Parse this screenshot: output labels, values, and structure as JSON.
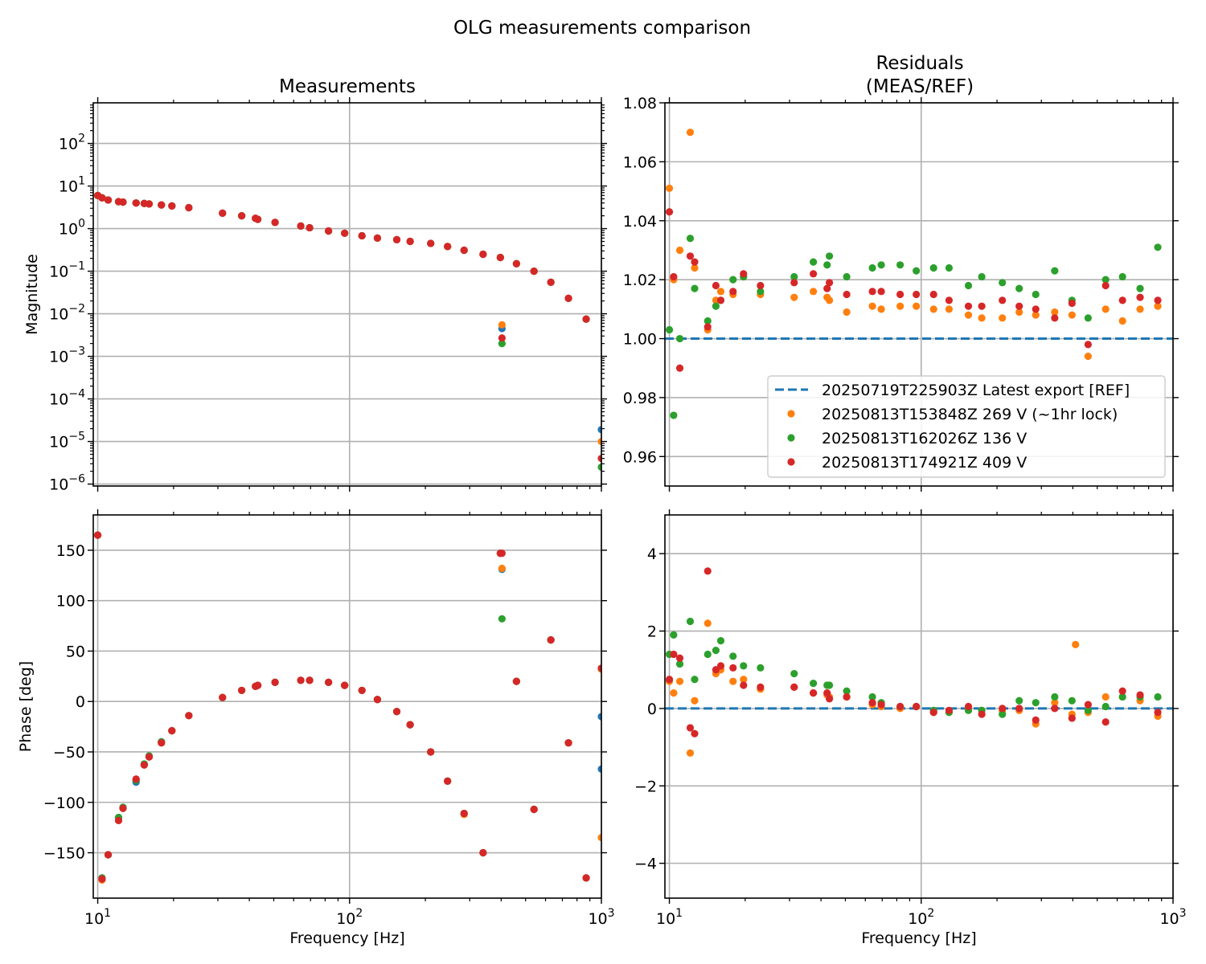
{
  "figure": {
    "title": "OLG measurements comparison"
  },
  "colors": {
    "ref": "#1f77b4",
    "meas1": "#ff7f0e",
    "meas2": "#2ca02c",
    "meas3": "#d62728",
    "grid": "#b0b0b0"
  },
  "chart_data": [
    {
      "id": "mag",
      "type": "scatter",
      "title": "Measurements",
      "xlabel": "",
      "ylabel": "Magnitude",
      "xscale": "log",
      "yscale": "log",
      "xlim": [
        9.6,
        1000
      ],
      "ylim": [
        9e-07,
        900
      ],
      "grid": true,
      "xticks": [
        10,
        100,
        1000
      ],
      "yticks": [
        1e-06,
        1e-05,
        0.0001,
        0.001,
        0.01,
        0.1,
        1,
        10,
        100
      ],
      "ytick_labels": [
        [
          "10",
          "−6"
        ],
        [
          "10",
          "−5"
        ],
        [
          "10",
          "−4"
        ],
        [
          "10",
          "−3"
        ],
        [
          "10",
          "−2"
        ],
        [
          "10",
          "−1"
        ],
        [
          "10",
          "0"
        ],
        [
          "10",
          "1"
        ],
        [
          "10",
          "2"
        ]
      ],
      "x": [
        10.0,
        10.4,
        11.0,
        12.1,
        12.6,
        14.2,
        15.3,
        16.0,
        17.9,
        19.7,
        23.0,
        31.3,
        37.3,
        42.3,
        43.2,
        50.6,
        64.0,
        69.4,
        82.5,
        95.6,
        112.0,
        129.0,
        154.0,
        174.0,
        210.0,
        245.0,
        285.0,
        339.0,
        397.0,
        460.0,
        540.0,
        630.0,
        740.0,
        870.0
      ],
      "series": [
        {
          "name": "20250719T225903Z Latest export [REF]",
          "color_key": "ref",
          "values": [
            6.0,
            5.3,
            4.7,
            4.3,
            4.2,
            4.0,
            3.9,
            3.8,
            3.6,
            3.4,
            3.1,
            2.3,
            2.0,
            1.75,
            1.65,
            1.4,
            1.15,
            1.05,
            0.88,
            0.78,
            0.68,
            0.6,
            0.55,
            0.5,
            0.45,
            0.38,
            0.31,
            0.25,
            0.21,
            0.15,
            0.1,
            0.055,
            0.023,
            0.0075
          ],
          "extra": [
            [
              403,
              0.0045
            ],
            [
              1000,
              1.9e-05
            ]
          ]
        },
        {
          "name": "20250813T153848Z 269 V (~1hr lock)",
          "color_key": "meas1",
          "values": [
            6.0,
            5.3,
            4.7,
            4.3,
            4.2,
            4.0,
            3.9,
            3.8,
            3.6,
            3.4,
            3.1,
            2.3,
            2.0,
            1.75,
            1.65,
            1.4,
            1.15,
            1.05,
            0.88,
            0.78,
            0.68,
            0.6,
            0.55,
            0.5,
            0.45,
            0.38,
            0.31,
            0.25,
            0.21,
            0.15,
            0.1,
            0.055,
            0.023,
            0.0075
          ],
          "extra": [
            [
              403,
              0.0055
            ],
            [
              1000,
              1e-05
            ]
          ]
        },
        {
          "name": "20250813T162026Z 136 V",
          "color_key": "meas2",
          "values": [
            6.0,
            5.3,
            4.7,
            4.3,
            4.2,
            4.0,
            3.9,
            3.8,
            3.6,
            3.4,
            3.1,
            2.3,
            2.0,
            1.75,
            1.65,
            1.4,
            1.15,
            1.05,
            0.88,
            0.78,
            0.68,
            0.6,
            0.55,
            0.5,
            0.45,
            0.38,
            0.31,
            0.25,
            0.21,
            0.15,
            0.1,
            0.055,
            0.023,
            0.0075
          ],
          "extra": [
            [
              403,
              0.002
            ],
            [
              1000,
              2.5e-06
            ]
          ]
        },
        {
          "name": "20250813T174921Z 409 V",
          "color_key": "meas3",
          "values": [
            6.0,
            5.3,
            4.7,
            4.3,
            4.2,
            4.0,
            3.9,
            3.8,
            3.6,
            3.4,
            3.1,
            2.3,
            2.0,
            1.75,
            1.65,
            1.4,
            1.15,
            1.05,
            0.88,
            0.78,
            0.68,
            0.6,
            0.55,
            0.5,
            0.45,
            0.38,
            0.31,
            0.25,
            0.21,
            0.15,
            0.1,
            0.055,
            0.023,
            0.0075
          ],
          "extra": [
            [
              403,
              0.0027
            ],
            [
              1000,
              4e-06
            ]
          ]
        }
      ]
    },
    {
      "id": "mag_res",
      "type": "scatter",
      "title": "Residuals\n(MEAS/REF)",
      "xlabel": "",
      "ylabel": "",
      "xscale": "log",
      "yscale": "linear",
      "xlim": [
        9.6,
        1000
      ],
      "ylim": [
        0.95,
        1.08
      ],
      "grid": true,
      "xticks": [
        10,
        100,
        1000
      ],
      "yticks": [
        0.96,
        0.98,
        1.0,
        1.02,
        1.04,
        1.06,
        1.08
      ],
      "ytick_labels": [
        "0.96",
        "0.98",
        "1.00",
        "1.02",
        "1.04",
        "1.06",
        "1.08"
      ],
      "reference": 1.0,
      "x": [
        10.0,
        10.4,
        11.0,
        12.1,
        12.6,
        14.2,
        15.3,
        16.0,
        17.9,
        19.7,
        23.0,
        31.3,
        37.3,
        42.3,
        43.2,
        50.6,
        64.0,
        69.4,
        82.5,
        95.6,
        112.0,
        129.0,
        154.0,
        174.0,
        210.0,
        245.0,
        285.0,
        339.0,
        397.0,
        460.0,
        540.0,
        630.0,
        740.0,
        870.0
      ],
      "series": [
        {
          "name": "20250813T153848Z 269 V (~1hr lock)",
          "color_key": "meas1",
          "values": [
            1.051,
            1.02,
            1.03,
            1.07,
            1.024,
            1.003,
            1.013,
            1.016,
            1.015,
            1.021,
            1.015,
            1.014,
            1.016,
            1.014,
            1.013,
            1.009,
            1.011,
            1.01,
            1.011,
            1.011,
            1.01,
            1.01,
            1.008,
            1.007,
            1.007,
            1.009,
            1.008,
            1.009,
            1.008,
            0.994,
            1.01,
            1.006,
            1.01,
            1.011
          ]
        },
        {
          "name": "20250813T162026Z 136 V",
          "color_key": "meas2",
          "values": [
            1.003,
            0.974,
            1.0,
            1.034,
            1.017,
            1.006,
            1.011,
            1.013,
            1.02,
            1.021,
            1.016,
            1.021,
            1.026,
            1.025,
            1.028,
            1.021,
            1.024,
            1.025,
            1.025,
            1.023,
            1.024,
            1.024,
            1.018,
            1.021,
            1.019,
            1.017,
            1.015,
            1.023,
            1.013,
            1.007,
            1.02,
            1.021,
            1.017,
            1.031
          ]
        },
        {
          "name": "20250813T174921Z 409 V",
          "color_key": "meas3",
          "values": [
            1.043,
            1.021,
            0.99,
            1.028,
            1.026,
            1.004,
            1.018,
            1.013,
            1.016,
            1.022,
            1.018,
            1.019,
            1.022,
            1.017,
            1.019,
            1.015,
            1.016,
            1.016,
            1.015,
            1.015,
            1.015,
            1.013,
            1.011,
            1.011,
            1.013,
            1.011,
            1.01,
            1.007,
            1.012,
            0.998,
            1.018,
            1.013,
            1.014,
            1.013
          ]
        }
      ]
    },
    {
      "id": "phase",
      "type": "scatter",
      "title": "",
      "xlabel": "Frequency [Hz]",
      "ylabel": "Phase [deg]",
      "xscale": "log",
      "yscale": "linear",
      "xlim": [
        9.6,
        1000
      ],
      "ylim": [
        -195,
        185
      ],
      "grid": true,
      "xticks": [
        10,
        100,
        1000
      ],
      "xtick_labels": [
        [
          "10",
          "1"
        ],
        [
          "10",
          "2"
        ],
        [
          "10",
          "3"
        ]
      ],
      "yticks": [
        -150,
        -100,
        -50,
        0,
        50,
        100,
        150
      ],
      "ytick_labels": [
        "−150",
        "−100",
        "−50",
        "0",
        "50",
        "100",
        "150"
      ],
      "x": [
        10.0,
        10.4,
        11.0,
        12.1,
        12.6,
        14.2,
        15.3,
        16.0,
        17.9,
        19.7,
        23.0,
        31.3,
        37.3,
        42.3,
        43.2,
        50.6,
        64.0,
        69.4,
        82.5,
        95.6,
        112.0,
        129.0,
        154.0,
        174.0,
        210.0,
        245.0,
        285.0,
        339.0,
        397.0,
        460.0,
        540.0,
        630.0,
        740.0,
        870.0
      ],
      "series": [
        {
          "name": "20250719T225903Z Latest export [REF]",
          "color_key": "ref",
          "values": [
            165,
            -175,
            -152,
            -115,
            -105,
            -80,
            -62,
            -54,
            -40,
            -29,
            -14,
            4,
            11,
            15,
            16,
            19,
            21,
            21,
            19,
            16,
            11,
            2,
            -10,
            -23,
            -50,
            -79,
            -111,
            -150,
            147,
            20,
            -107,
            61,
            -41,
            -175
          ],
          "extra": [
            [
              403,
              131
            ],
            [
              1000,
              -15
            ],
            [
              1000,
              -67
            ]
          ]
        },
        {
          "name": "20250813T153848Z 269 V (~1hr lock)",
          "color_key": "meas1",
          "values": [
            165,
            -177,
            -152,
            -118,
            -106,
            -77,
            -63,
            -55,
            -41,
            -29,
            -14,
            4,
            11,
            15,
            16,
            19,
            21,
            21,
            19,
            16,
            11,
            2,
            -10,
            -23,
            -50,
            -79,
            -112,
            -150,
            147,
            20,
            -107,
            61,
            -41,
            -175
          ],
          "extra": [
            [
              403,
              132
            ],
            [
              1000,
              32
            ],
            [
              1000,
              -135
            ]
          ]
        },
        {
          "name": "20250813T162026Z 136 V",
          "color_key": "meas2",
          "values": [
            165,
            -175,
            -152,
            -115,
            -105,
            -78,
            -62,
            -54,
            -40,
            -29,
            -14,
            4,
            11,
            15,
            16,
            19,
            21,
            21,
            19,
            16,
            11,
            2,
            -10,
            -23,
            -50,
            -79,
            -111,
            -150,
            147,
            20,
            -107,
            61,
            -41,
            -175
          ],
          "extra": [
            [
              403,
              82
            ]
          ]
        },
        {
          "name": "20250813T174921Z 409 V",
          "color_key": "meas3",
          "values": [
            165,
            -176,
            -152,
            -118,
            -106,
            -77,
            -63,
            -55,
            -41,
            -29,
            -14,
            4,
            11,
            15,
            16,
            19,
            21,
            21,
            19,
            16,
            11,
            2,
            -10,
            -23,
            -50,
            -79,
            -111,
            -150,
            147,
            20,
            -107,
            61,
            -41,
            -175
          ],
          "extra": [
            [
              403,
              147
            ],
            [
              1000,
              33
            ]
          ]
        }
      ]
    },
    {
      "id": "phase_res",
      "type": "scatter",
      "title": "",
      "xlabel": "Frequency [Hz]",
      "ylabel": "",
      "xscale": "log",
      "yscale": "linear",
      "xlim": [
        9.6,
        1000
      ],
      "ylim": [
        -4.9,
        5.0
      ],
      "grid": true,
      "xticks": [
        10,
        100,
        1000
      ],
      "xtick_labels": [
        [
          "10",
          "1"
        ],
        [
          "10",
          "2"
        ],
        [
          "10",
          "3"
        ]
      ],
      "yticks": [
        -4,
        -2,
        0,
        2,
        4
      ],
      "ytick_labels": [
        "−4",
        "−2",
        "0",
        "2",
        "4"
      ],
      "reference": 0,
      "x": [
        10.0,
        10.4,
        11.0,
        12.1,
        12.6,
        14.2,
        15.3,
        16.0,
        17.9,
        19.7,
        23.0,
        31.3,
        37.3,
        42.3,
        43.2,
        50.6,
        64.0,
        69.4,
        82.5,
        95.6,
        112.0,
        129.0,
        154.0,
        174.0,
        210.0,
        245.0,
        285.0,
        339.0,
        397.0,
        460.0,
        540.0,
        630.0,
        740.0,
        870.0
      ],
      "series": [
        {
          "name": "20250813T153848Z 269 V (~1hr lock)",
          "color_key": "meas1",
          "values": [
            0.7,
            0.4,
            0.7,
            -1.15,
            0.2,
            2.2,
            0.9,
            1.0,
            0.7,
            0.75,
            0.5,
            0.55,
            0.4,
            0.35,
            0.3,
            0.3,
            0.1,
            0.05,
            0.0,
            0.05,
            -0.1,
            -0.1,
            0.0,
            -0.05,
            -0.05,
            -0.05,
            -0.4,
            0.15,
            -0.15,
            -0.1,
            0.3,
            0.3,
            0.2,
            -0.2
          ],
          "extra": [
            [
              410,
              1.65
            ]
          ]
        },
        {
          "name": "20250813T162026Z 136 V",
          "color_key": "meas2",
          "values": [
            1.4,
            1.9,
            1.15,
            2.25,
            0.75,
            1.4,
            1.5,
            1.75,
            1.35,
            1.1,
            1.05,
            0.9,
            0.65,
            0.6,
            0.6,
            0.45,
            0.3,
            0.15,
            0.05,
            0.05,
            -0.05,
            -0.1,
            -0.05,
            -0.05,
            -0.15,
            0.2,
            0.15,
            0.3,
            0.2,
            -0.05,
            0.05,
            0.3,
            0.3,
            0.3
          ]
        },
        {
          "name": "20250813T174921Z 409 V",
          "color_key": "meas3",
          "values": [
            0.75,
            1.4,
            1.3,
            -0.5,
            -0.65,
            3.55,
            1.0,
            1.1,
            1.05,
            0.6,
            0.55,
            0.55,
            0.4,
            0.4,
            0.25,
            0.3,
            0.15,
            0.1,
            0.05,
            0.05,
            -0.1,
            -0.05,
            0.05,
            -0.15,
            0.0,
            0.0,
            -0.3,
            0.0,
            -0.25,
            0.1,
            -0.35,
            0.45,
            0.35,
            -0.1
          ]
        }
      ]
    }
  ],
  "legend": {
    "placement": "lower-right",
    "entries": [
      {
        "label": "20250719T225903Z Latest export [REF]",
        "color_key": "ref",
        "style": "dashed-line"
      },
      {
        "label": "20250813T153848Z 269 V (~1hr lock)",
        "color_key": "meas1",
        "style": "marker"
      },
      {
        "label": "20250813T162026Z 136 V",
        "color_key": "meas2",
        "style": "marker"
      },
      {
        "label": "20250813T174921Z 409 V",
        "color_key": "meas3",
        "style": "marker"
      }
    ]
  }
}
